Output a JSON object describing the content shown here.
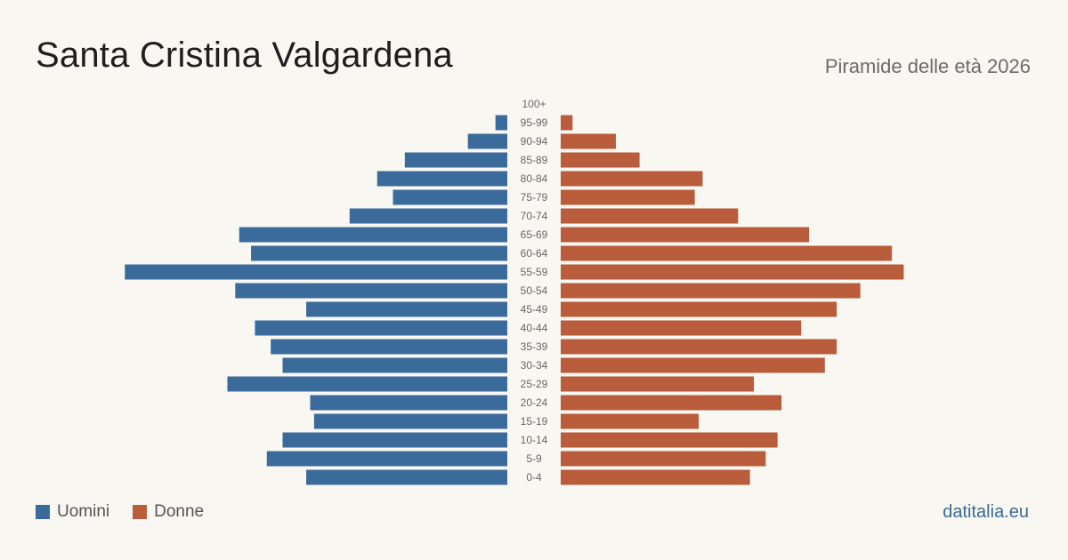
{
  "title": "Santa Cristina Valgardena",
  "subtitle": "Piramide delle età 2026",
  "brand": "datitalia.eu",
  "colors": {
    "men": "#3a6b9a",
    "women": "#b85c3b",
    "age_label": "#666666"
  },
  "legend": {
    "men_label": "Uomini",
    "women_label": "Donne"
  },
  "chart_data": {
    "type": "bar",
    "orientation": "horizontal-pyramid",
    "categories": [
      "100+",
      "95-99",
      "90-94",
      "85-89",
      "80-84",
      "75-79",
      "70-74",
      "65-69",
      "60-64",
      "55-59",
      "50-54",
      "45-49",
      "40-44",
      "35-39",
      "30-34",
      "25-29",
      "20-24",
      "15-19",
      "10-14",
      "5-9",
      "0-4"
    ],
    "series": [
      {
        "name": "Uomini",
        "values": [
          0,
          3,
          10,
          26,
          33,
          29,
          40,
          68,
          65,
          97,
          69,
          51,
          64,
          60,
          57,
          71,
          50,
          49,
          57,
          61,
          51
        ]
      },
      {
        "name": "Donne",
        "values": [
          0,
          3,
          14,
          20,
          36,
          34,
          45,
          63,
          84,
          87,
          76,
          70,
          61,
          70,
          67,
          49,
          56,
          35,
          55,
          52,
          48
        ]
      }
    ]
  }
}
